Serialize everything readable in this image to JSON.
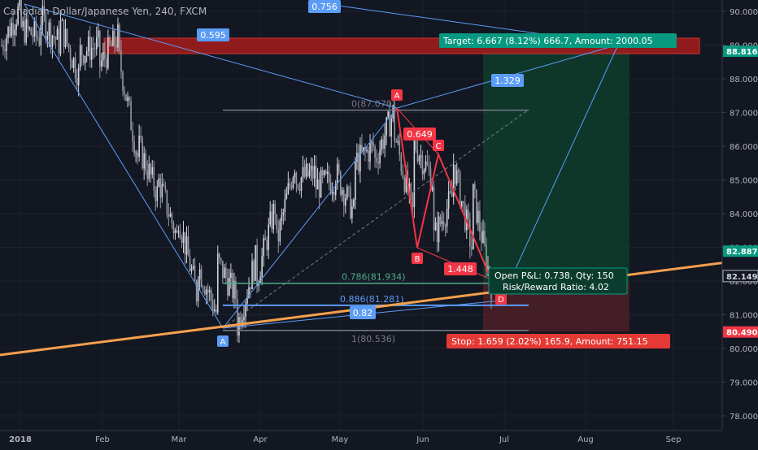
{
  "chart_data": {
    "type": "candlestick",
    "title": "Canadian Dollar/Japanese Yen, 240, FXCM",
    "y_axis": {
      "ylim": [
        77.5,
        90.5
      ],
      "ticks": [
        "78.000",
        "79.000",
        "80.000",
        "81.000",
        "82.000",
        "83.000",
        "84.000",
        "85.000",
        "86.000",
        "87.000",
        "88.000",
        "89.000",
        "90.000"
      ]
    },
    "x_axis": {
      "ticks": [
        "2018",
        "Feb",
        "Mar",
        "Apr",
        "May",
        "Jun",
        "Jul",
        "Aug",
        "Sep"
      ]
    },
    "price_labels": [
      {
        "text": "88.816",
        "value": 88.816,
        "color": "#089981"
      },
      {
        "text": "82.887",
        "value": 82.887,
        "color": "#089981"
      },
      {
        "text": "82.149",
        "value": 82.149,
        "color": "#131722"
      },
      {
        "text": "80.490",
        "value": 80.49,
        "color": "#f23645"
      }
    ],
    "fib_levels": [
      {
        "text": "0(87.070)",
        "value": 87.07,
        "color": "#787b86"
      },
      {
        "text": "0.786(81.934)",
        "value": 81.934,
        "color": "#4caf8a"
      },
      {
        "text": "0.886(81.281)",
        "value": 81.281,
        "color": "#5b9cf6"
      },
      {
        "text": "1(80.536)",
        "value": 80.536,
        "color": "#787b86"
      }
    ],
    "ratios": [
      {
        "text": "0.756",
        "color": "#5b9cf6"
      },
      {
        "text": "0.595",
        "color": "#5b9cf6"
      },
      {
        "text": "1.329",
        "color": "#5b9cf6"
      },
      {
        "text": "0.82",
        "color": "#5b9cf6"
      },
      {
        "text": "0.649",
        "color": "#f23645"
      },
      {
        "text": "1.448",
        "color": "#f23645"
      }
    ],
    "points": [
      {
        "label": "A",
        "color": "#5b9cf6",
        "value": 80.536
      },
      {
        "label": "A",
        "color": "#f23645",
        "value": 87.07
      },
      {
        "label": "B",
        "color": "#f23645",
        "value": 83.2
      },
      {
        "label": "C",
        "color": "#f23645",
        "value": 85.7
      },
      {
        "label": "D",
        "color": "#f23645",
        "value": 81.5
      }
    ],
    "target_label": "Target: 6.667 (8.12%) 666.7, Amount: 2000.05",
    "stop_label": "Stop: 1.659 (2.02%) 165.9, Amount: 751.15",
    "pnl_label": "Open P&L: 0.738, Qty: 150",
    "rr_label": "Risk/Reward Ratio: 4.02",
    "series_path": [
      [
        89.0,
        90.0
      ],
      [
        89.5,
        90.2
      ],
      [
        89.8,
        89.2
      ],
      [
        89.6,
        89.0
      ],
      [
        88.8,
        88.0
      ],
      [
        88.4,
        89.0
      ],
      [
        88.6,
        89.3
      ],
      [
        86.0,
        85.5
      ],
      [
        85.0,
        84.5
      ],
      [
        84.0,
        83.2
      ],
      [
        82.5,
        81.5
      ],
      [
        82.6,
        81.0
      ],
      [
        80.6,
        81.5
      ],
      [
        82.0,
        82.7
      ],
      [
        83.0,
        84.3
      ],
      [
        85.0,
        85.6
      ],
      [
        84.8,
        85.2
      ],
      [
        85.3,
        85.0
      ],
      [
        85.5,
        84.0
      ],
      [
        85.5,
        86.0
      ],
      [
        86.5,
        87.0
      ],
      [
        86.2,
        84.0
      ],
      [
        83.2,
        85.0
      ],
      [
        85.7,
        84.5
      ],
      [
        84.8,
        83.0
      ],
      [
        82.2,
        81.9
      ]
    ],
    "colors": {
      "background": "#131722",
      "bull": "#d1d4dc",
      "bear": "#9598a1",
      "trendline": "#f5a04d",
      "pattern": "#f23645",
      "xabcd": "#5b9cf6",
      "target_zone": "#0d3b2a",
      "stop_zone": "#4a1c24",
      "red_zone": "#b71c1c"
    }
  }
}
